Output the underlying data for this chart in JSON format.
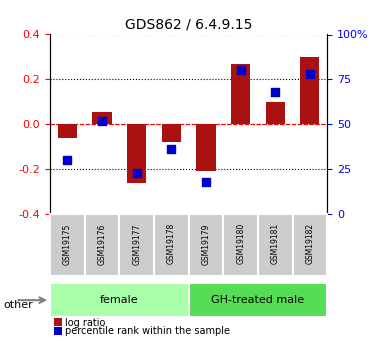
{
  "title": "GDS862 / 6.4.9.15",
  "samples": [
    "GSM19175",
    "GSM19176",
    "GSM19177",
    "GSM19178",
    "GSM19179",
    "GSM19180",
    "GSM19181",
    "GSM19182"
  ],
  "log_ratio": [
    -0.06,
    0.055,
    -0.26,
    -0.08,
    -0.21,
    0.27,
    0.1,
    0.3
  ],
  "percentile_rank": [
    30,
    52,
    23,
    36,
    18,
    80,
    68,
    78
  ],
  "groups": [
    {
      "label": "female",
      "indices": [
        0,
        1,
        2,
        3
      ],
      "color": "#aaffaa"
    },
    {
      "label": "GH-treated male",
      "indices": [
        4,
        5,
        6,
        7
      ],
      "color": "#55dd55"
    }
  ],
  "bar_color": "#aa1111",
  "dot_color": "#0000cc",
  "ylim": [
    -0.4,
    0.4
  ],
  "y2lim": [
    0,
    100
  ],
  "y_ticks": [
    -0.4,
    -0.2,
    0.0,
    0.2,
    0.4
  ],
  "y2_ticks": [
    0,
    25,
    50,
    75,
    100
  ],
  "bar_width": 0.55,
  "dot_size": 40,
  "background_color": "#ffffff",
  "plot_bg_color": "#ffffff",
  "other_label": "other"
}
